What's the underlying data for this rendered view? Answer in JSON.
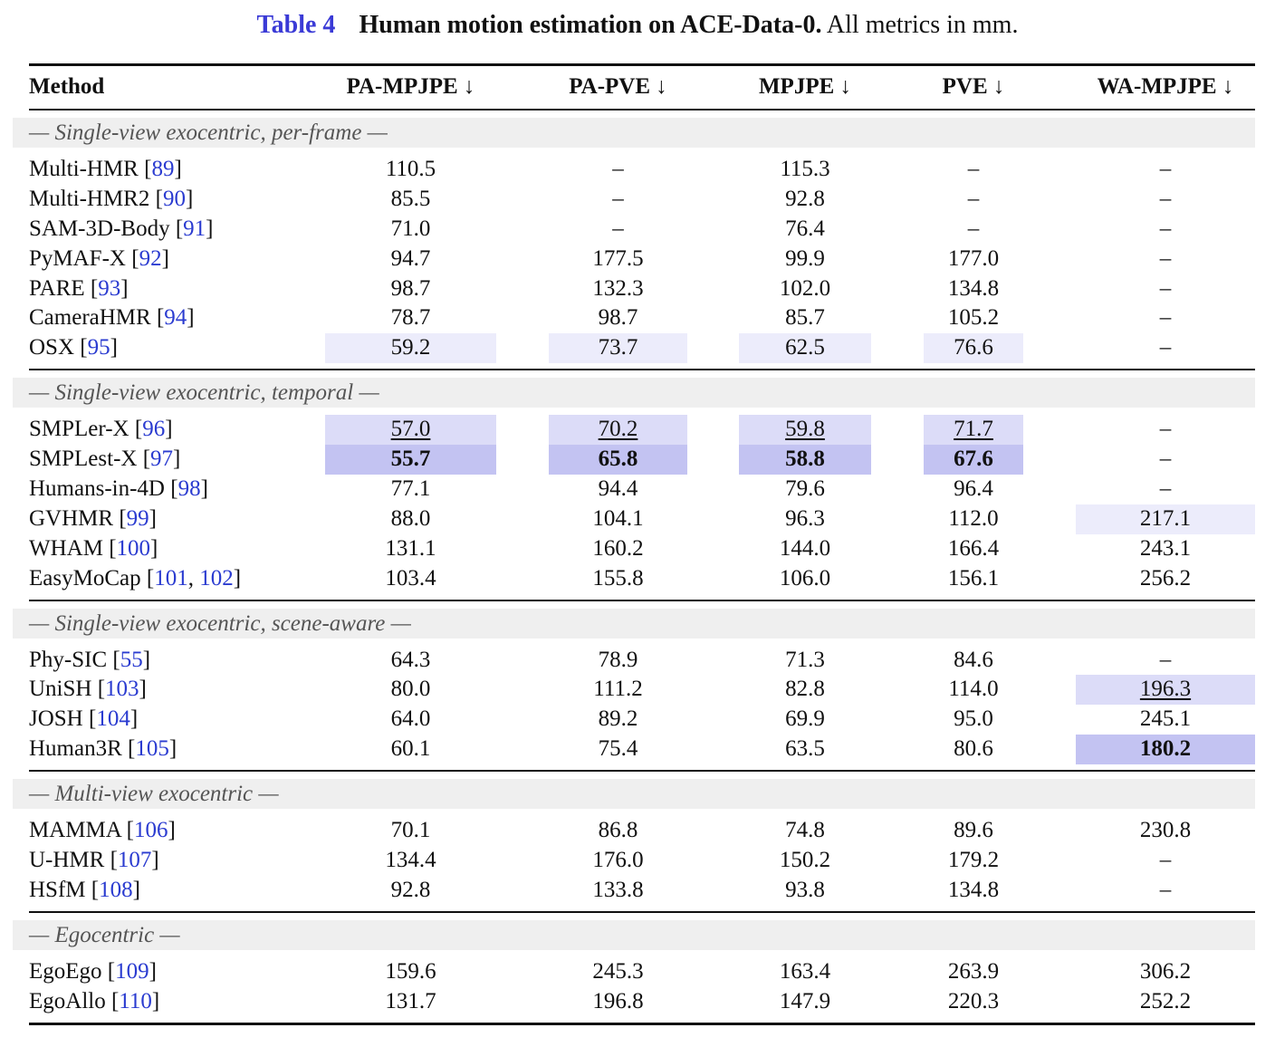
{
  "caption": {
    "table_label": "Table 4",
    "bold_text": "Human motion estimation on ACE-Data-0.",
    "rest_text": " All metrics in mm."
  },
  "columns": [
    "Method",
    "PA-MPJPE ↓",
    "PA-PVE ↓",
    "MPJPE ↓",
    "PVE ↓",
    "WA-MPJPE ↓"
  ],
  "sections": [
    {
      "title": "— Single-view exocentric, per-frame —",
      "rows": [
        {
          "name": "Multi-HMR",
          "cites": [
            "89"
          ],
          "values": [
            "110.5",
            "–",
            "115.3",
            "–",
            "–"
          ],
          "hl": [
            0,
            0,
            0,
            0,
            0
          ]
        },
        {
          "name": "Multi-HMR2",
          "cites": [
            "90"
          ],
          "values": [
            "85.5",
            "–",
            "92.8",
            "–",
            "–"
          ],
          "hl": [
            0,
            0,
            0,
            0,
            0
          ]
        },
        {
          "name": "SAM-3D-Body",
          "cites": [
            "91"
          ],
          "values": [
            "71.0",
            "–",
            "76.4",
            "–",
            "–"
          ],
          "hl": [
            0,
            0,
            0,
            0,
            0
          ]
        },
        {
          "name": "PyMAF-X",
          "cites": [
            "92"
          ],
          "values": [
            "94.7",
            "177.5",
            "99.9",
            "177.0",
            "–"
          ],
          "hl": [
            0,
            0,
            0,
            0,
            0
          ]
        },
        {
          "name": "PARE",
          "cites": [
            "93"
          ],
          "values": [
            "98.7",
            "132.3",
            "102.0",
            "134.8",
            "–"
          ],
          "hl": [
            0,
            0,
            0,
            0,
            0
          ]
        },
        {
          "name": "CameraHMR",
          "cites": [
            "94"
          ],
          "values": [
            "78.7",
            "98.7",
            "85.7",
            "105.2",
            "–"
          ],
          "hl": [
            0,
            0,
            0,
            0,
            0
          ]
        },
        {
          "name": "OSX",
          "cites": [
            "95"
          ],
          "values": [
            "59.2",
            "73.7",
            "62.5",
            "76.6",
            "–"
          ],
          "hl": [
            1,
            1,
            1,
            1,
            0
          ]
        }
      ]
    },
    {
      "title": "— Single-view exocentric, temporal —",
      "rows": [
        {
          "name": "SMPLer-X",
          "cites": [
            "96"
          ],
          "values": [
            "57.0",
            "70.2",
            "59.8",
            "71.7",
            "–"
          ],
          "hl": [
            2,
            2,
            2,
            2,
            0
          ]
        },
        {
          "name": "SMPLest-X",
          "cites": [
            "97"
          ],
          "values": [
            "55.7",
            "65.8",
            "58.8",
            "67.6",
            "–"
          ],
          "hl": [
            3,
            3,
            3,
            3,
            0
          ]
        },
        {
          "name": "Humans-in-4D",
          "cites": [
            "98"
          ],
          "values": [
            "77.1",
            "94.4",
            "79.6",
            "96.4",
            "–"
          ],
          "hl": [
            0,
            0,
            0,
            0,
            0
          ]
        },
        {
          "name": "GVHMR",
          "cites": [
            "99"
          ],
          "values": [
            "88.0",
            "104.1",
            "96.3",
            "112.0",
            "217.1"
          ],
          "hl": [
            0,
            0,
            0,
            0,
            1
          ]
        },
        {
          "name": "WHAM",
          "cites": [
            "100"
          ],
          "values": [
            "131.1",
            "160.2",
            "144.0",
            "166.4",
            "243.1"
          ],
          "hl": [
            0,
            0,
            0,
            0,
            0
          ]
        },
        {
          "name": "EasyMoCap",
          "cites": [
            "101",
            "102"
          ],
          "values": [
            "103.4",
            "155.8",
            "106.0",
            "156.1",
            "256.2"
          ],
          "hl": [
            0,
            0,
            0,
            0,
            0
          ]
        }
      ]
    },
    {
      "title": "— Single-view exocentric, scene-aware —",
      "rows": [
        {
          "name": "Phy-SIC",
          "cites": [
            "55"
          ],
          "values": [
            "64.3",
            "78.9",
            "71.3",
            "84.6",
            "–"
          ],
          "hl": [
            0,
            0,
            0,
            0,
            0
          ]
        },
        {
          "name": "UniSH",
          "cites": [
            "103"
          ],
          "values": [
            "80.0",
            "111.2",
            "82.8",
            "114.0",
            "196.3"
          ],
          "hl": [
            0,
            0,
            0,
            0,
            2
          ]
        },
        {
          "name": "JOSH",
          "cites": [
            "104"
          ],
          "values": [
            "64.0",
            "89.2",
            "69.9",
            "95.0",
            "245.1"
          ],
          "hl": [
            0,
            0,
            0,
            0,
            0
          ]
        },
        {
          "name": "Human3R",
          "cites": [
            "105"
          ],
          "values": [
            "60.1",
            "75.4",
            "63.5",
            "80.6",
            "180.2"
          ],
          "hl": [
            0,
            0,
            0,
            0,
            3
          ]
        }
      ]
    },
    {
      "title": "— Multi-view exocentric —",
      "rows": [
        {
          "name": "MAMMA",
          "cites": [
            "106"
          ],
          "values": [
            "70.1",
            "86.8",
            "74.8",
            "89.6",
            "230.8"
          ],
          "hl": [
            0,
            0,
            0,
            0,
            0
          ]
        },
        {
          "name": "U-HMR",
          "cites": [
            "107"
          ],
          "values": [
            "134.4",
            "176.0",
            "150.2",
            "179.2",
            "–"
          ],
          "hl": [
            0,
            0,
            0,
            0,
            0
          ]
        },
        {
          "name": "HSfM",
          "cites": [
            "108"
          ],
          "values": [
            "92.8",
            "133.8",
            "93.8",
            "134.8",
            "–"
          ],
          "hl": [
            0,
            0,
            0,
            0,
            0
          ]
        }
      ]
    },
    {
      "title": "— Egocentric —",
      "rows": [
        {
          "name": "EgoEgo",
          "cites": [
            "109"
          ],
          "values": [
            "159.6",
            "245.3",
            "163.4",
            "263.9",
            "306.2"
          ],
          "hl": [
            0,
            0,
            0,
            0,
            0
          ]
        },
        {
          "name": "EgoAllo",
          "cites": [
            "110"
          ],
          "values": [
            "131.7",
            "196.8",
            "147.9",
            "220.3",
            "252.2"
          ],
          "hl": [
            0,
            0,
            0,
            0,
            0
          ]
        }
      ]
    }
  ],
  "highlight_colors": {
    "third": "#ececfb",
    "second": "#dcdcf8",
    "best": "#c3c3f2"
  },
  "citation_color": "#2a3bd0"
}
